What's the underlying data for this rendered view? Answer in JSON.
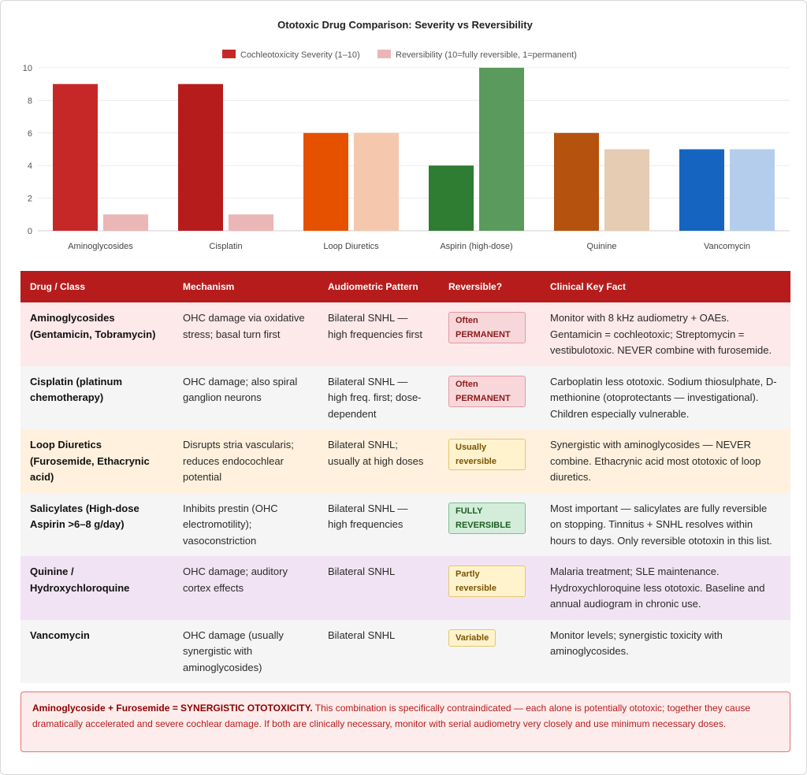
{
  "chart_data": {
    "type": "bar",
    "title": "Ototoxic Drug Comparison: Severity vs Reversibility",
    "categories": [
      "Aminoglycosides",
      "Cisplatin",
      "Loop Diuretics",
      "Aspirin (high-dose)",
      "Quinine",
      "Vancomycin"
    ],
    "series": [
      {
        "name": "Cochleotoxicity Severity (1–10)",
        "values": [
          9,
          9,
          6,
          4,
          6,
          5
        ],
        "colors": [
          "#c62828",
          "#b71c1c",
          "#e65100",
          "#2e7d32",
          "#b5520e",
          "#1565c0"
        ],
        "legend_color": "#c62828"
      },
      {
        "name": "Reversibility (10=fully reversible, 1=permanent)",
        "values": [
          1,
          1,
          6,
          10,
          5,
          5
        ],
        "colors": [
          "#ebb6b6",
          "#ebb6b6",
          "#f5c8ad",
          "#5a9a5c",
          "#e6ccb3",
          "#b5cdec"
        ],
        "legend_color": "#ebb6b6"
      }
    ],
    "ylim": [
      0,
      10
    ],
    "yticks": [
      "0",
      "2",
      "4",
      "6",
      "8",
      "10"
    ],
    "grid": true,
    "legend": "top-center",
    "xlabel": "",
    "ylabel": ""
  },
  "table": {
    "headers": [
      "Drug / Class",
      "Mechanism",
      "Audiometric Pattern",
      "Reversible?",
      "Clinical Key Fact"
    ],
    "rows": [
      {
        "drug": "Aminoglycosides (Gentamicin, Tobramycin)",
        "mechanism": "OHC damage via oxidative stress; basal turn first",
        "pattern": "Bilateral SNHL — high frequencies first",
        "reversible": "Often PERMANENT",
        "fact": "Monitor with 8 kHz audiometry + OAEs. Gentamicin = cochleotoxic; Streptomycin = vestibulotoxic. NEVER combine with furosemide."
      },
      {
        "drug": "Cisplatin (platinum chemotherapy)",
        "mechanism": "OHC damage; also spiral ganglion neurons",
        "pattern": "Bilateral SNHL — high freq. first; dose-dependent",
        "reversible": "Often PERMANENT",
        "fact": "Carboplatin less ototoxic. Sodium thiosulphate, D-methionine (otoprotectants — investigational). Children especially vulnerable."
      },
      {
        "drug": "Loop Diuretics (Furosemide, Ethacrynic acid)",
        "mechanism": "Disrupts stria vascularis; reduces endocochlear potential",
        "pattern": "Bilateral SNHL; usually at high doses",
        "reversible": "Usually reversible",
        "fact": "Synergistic with aminoglycosides — NEVER combine. Ethacrynic acid most ototoxic of loop diuretics."
      },
      {
        "drug": "Salicylates (High-dose Aspirin >6–8 g/day)",
        "mechanism": "Inhibits prestin (OHC electromotility); vasoconstriction",
        "pattern": "Bilateral SNHL — high frequencies",
        "reversible": "FULLY REVERSIBLE",
        "fact": "Most important — salicylates are fully reversible on stopping. Tinnitus + SNHL resolves within hours to days. Only reversible ototoxin in this list."
      },
      {
        "drug": "Quinine / Hydroxychloroquine",
        "mechanism": "OHC damage; auditory cortex effects",
        "pattern": "Bilateral SNHL",
        "reversible": "Partly reversible",
        "fact": "Malaria treatment; SLE maintenance. Hydroxychloroquine less ototoxic. Baseline and annual audiogram in chronic use."
      },
      {
        "drug": "Vancomycin",
        "mechanism": "OHC damage (usually synergistic with aminoglycosides)",
        "pattern": "Bilateral SNHL",
        "reversible": "Variable",
        "fact": "Monitor levels; synergistic toxicity with aminoglycosides."
      }
    ]
  },
  "warning": {
    "bold": "Aminoglycoside + Furosemide = SYNERGISTIC OTOTOXICITY.",
    "text": " This combination is specifically contraindicated — each alone is potentially ototoxic; together they cause dramatically accelerated and severe cochlear damage. If both are clinically necessary, monitor with serial audiometry very closely and use minimum necessary doses."
  }
}
